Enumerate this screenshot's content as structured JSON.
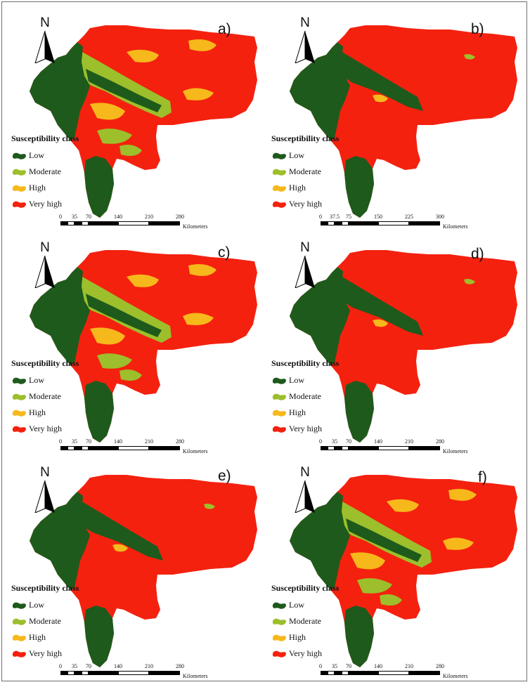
{
  "figure": {
    "legend_title": "Susceptibility class",
    "classes": [
      {
        "label": "Low",
        "color": "#1e5a1b"
      },
      {
        "label": "Moderate",
        "color": "#9cbf2b"
      },
      {
        "label": "High",
        "color": "#f6b81b"
      },
      {
        "label": "Very high",
        "color": "#f4210f"
      }
    ],
    "north_label": "N",
    "scale_unit": "Kilometers"
  },
  "panels": [
    {
      "letter": "a)",
      "scale_ticks": [
        "0",
        "35",
        "70",
        "140",
        "210",
        "280"
      ],
      "dominant": "mixed"
    },
    {
      "letter": "b)",
      "scale_ticks": [
        "0",
        "37.5",
        "75",
        "150",
        "225",
        "300"
      ],
      "dominant": "very-high"
    },
    {
      "letter": "c)",
      "scale_ticks": [
        "0",
        "35",
        "70",
        "140",
        "210",
        "280"
      ],
      "dominant": "mixed"
    },
    {
      "letter": "d)",
      "scale_ticks": [
        "0",
        "35",
        "70",
        "140",
        "210",
        "280"
      ],
      "dominant": "very-high"
    },
    {
      "letter": "e)",
      "scale_ticks": [
        "0",
        "35",
        "70",
        "140",
        "210",
        "280"
      ],
      "dominant": "very-high"
    },
    {
      "letter": "f)",
      "scale_ticks": [
        "0",
        "35",
        "70",
        "140",
        "210",
        "280"
      ],
      "dominant": "mixed"
    }
  ]
}
